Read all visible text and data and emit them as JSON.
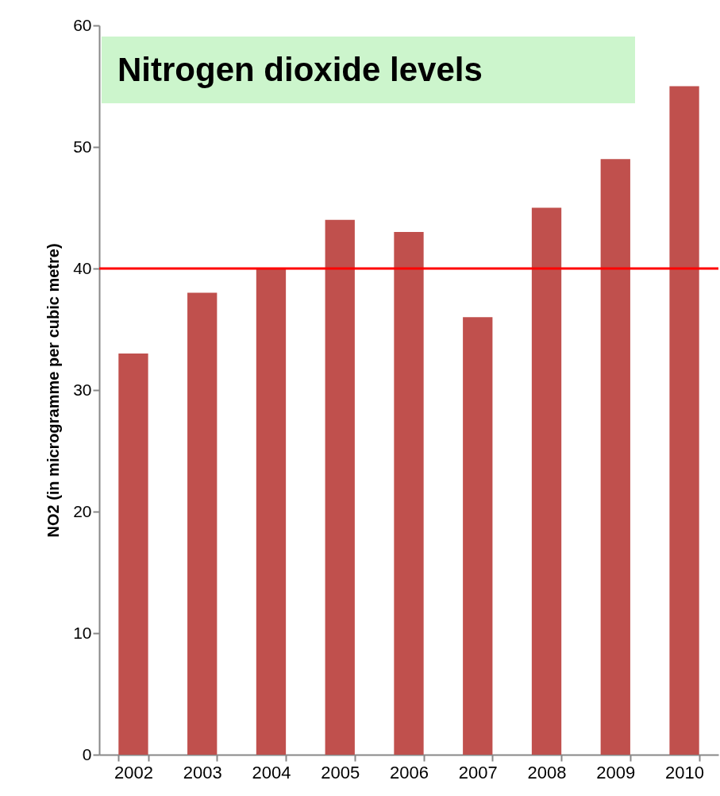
{
  "chart_data": {
    "type": "bar",
    "title": "Nitrogen dioxide levels",
    "ylabel": "NO2 (in microgramme per cubic metre)",
    "categories": [
      "2002",
      "2003",
      "2004",
      "2005",
      "2006",
      "2007",
      "2008",
      "2009",
      "2010"
    ],
    "values": [
      33,
      38,
      40,
      44,
      43,
      36,
      45,
      49,
      55
    ],
    "color": "#c0504d",
    "ylim": [
      0,
      60
    ],
    "yticks": [
      0,
      10,
      20,
      30,
      40,
      50,
      60
    ],
    "grid": false,
    "ref_lines": [
      {
        "axis": "y",
        "value": 40,
        "color": "#ff0000"
      }
    ]
  }
}
